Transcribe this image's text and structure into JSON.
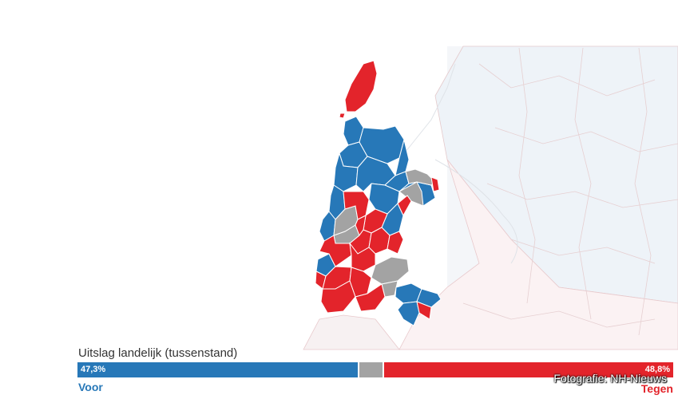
{
  "result": {
    "title": "Uitslag landelijk (tussenstand)",
    "voor": {
      "label": "Voor",
      "percent_text": "47,3%",
      "percent": 47.3,
      "color": "#2778b8"
    },
    "blanco": {
      "color": "#a3a3a3"
    },
    "tegen": {
      "label": "Tegen",
      "percent_text": "48,8%",
      "percent": 48.8,
      "color": "#e3242b"
    }
  },
  "map": {
    "region": "Noord-Holland",
    "legend_colors": {
      "voor": "#2778b8",
      "tegen": "#e3242b",
      "gelijk": "#a3a3a3"
    }
  },
  "photo_credit": "Fotografie: NH-Nieuws"
}
